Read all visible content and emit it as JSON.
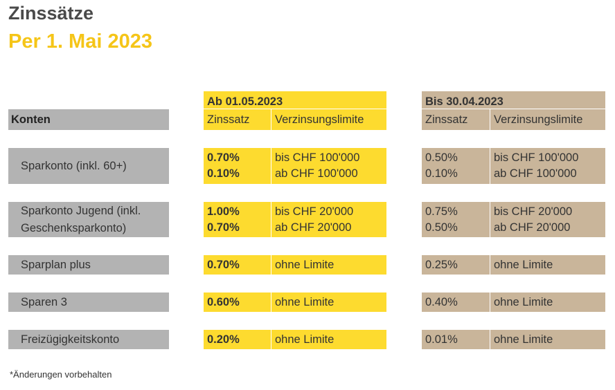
{
  "title": "Zinssätze",
  "subtitle": "Per 1. Mai 2023",
  "header": {
    "konten": "Konten",
    "new_period": "Ab 01.05.2023",
    "old_period": "Bis 30.04.2023",
    "rate_label": "Zinssatz",
    "limit_label": "Verzinsungslimite"
  },
  "rows": [
    {
      "account": [
        "Sparkonto (inkl. 60+)"
      ],
      "new_rates": [
        "0.70%",
        "0.10%"
      ],
      "new_limits": [
        "bis CHF 100'000",
        "ab CHF 100'000"
      ],
      "old_rates": [
        "0.50%",
        "0.10%"
      ],
      "old_limits": [
        "bis CHF 100'000",
        "ab CHF 100'000"
      ]
    },
    {
      "account": [
        "Sparkonto Jugend (inkl.",
        "Geschenksparkonto)"
      ],
      "new_rates": [
        "1.00%",
        "0.70%"
      ],
      "new_limits": [
        "bis CHF 20'000",
        "ab CHF 20'000"
      ],
      "old_rates": [
        "0.75%",
        "0.50%"
      ],
      "old_limits": [
        "bis CHF 20'000",
        "ab CHF 20'000"
      ]
    },
    {
      "account": [
        "Sparplan plus"
      ],
      "new_rates": [
        "0.70%"
      ],
      "new_limits": [
        "ohne Limite"
      ],
      "old_rates": [
        "0.25%"
      ],
      "old_limits": [
        "ohne Limite"
      ]
    },
    {
      "account": [
        "Sparen 3"
      ],
      "new_rates": [
        "0.60%"
      ],
      "new_limits": [
        "ohne Limite"
      ],
      "old_rates": [
        "0.40%"
      ],
      "old_limits": [
        "ohne Limite"
      ]
    },
    {
      "account": [
        "Freizügigkeitskonto"
      ],
      "new_rates": [
        "0.20%"
      ],
      "new_limits": [
        "ohne Limite"
      ],
      "old_rates": [
        "0.01%"
      ],
      "old_limits": [
        "ohne Limite"
      ]
    }
  ],
  "footnote": "*Änderungen vorbehalten",
  "colors": {
    "accent_yellow": "#fddb2f",
    "old_period_tan": "#c9b59a",
    "label_grey": "#b3b3b3",
    "subtitle_yellow": "#f5c518"
  }
}
